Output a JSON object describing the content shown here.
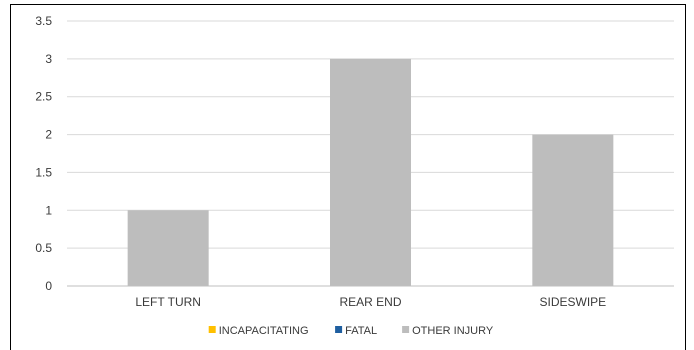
{
  "chart_data": {
    "type": "bar",
    "title": "",
    "xlabel": "",
    "ylabel": "",
    "categories": [
      "LEFT TURN",
      "REAR END",
      "SIDESWIPE"
    ],
    "series": [
      {
        "name": "INCAPACITATING",
        "color": "#FFC000",
        "values": [
          0,
          0,
          0
        ]
      },
      {
        "name": "FATAL",
        "color": "#1F5FA0",
        "values": [
          0,
          0,
          0
        ]
      },
      {
        "name": "OTHER INJURY",
        "color": "#BDBDBD",
        "values": [
          1,
          3,
          2
        ]
      }
    ],
    "ylim": [
      0,
      3.5
    ],
    "yticks": [
      "0",
      "0.5",
      "1",
      "1.5",
      "2",
      "2.5",
      "3",
      "3.5"
    ],
    "stacked": true,
    "grid": true,
    "legend": "bottom"
  }
}
